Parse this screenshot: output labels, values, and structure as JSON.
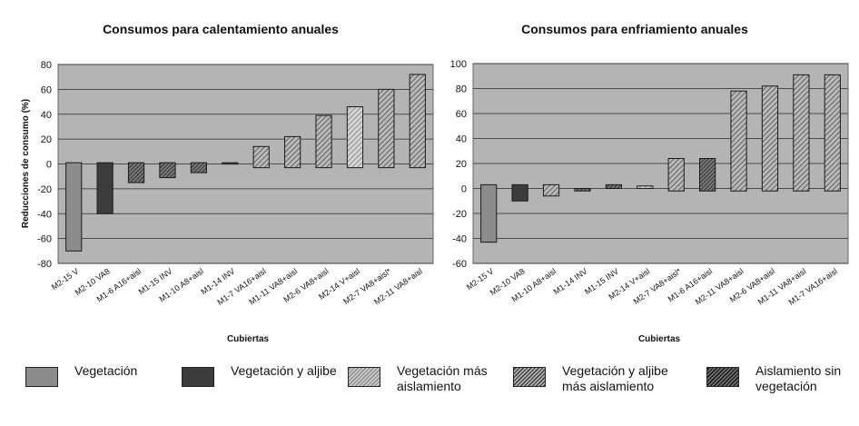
{
  "chart_data": [
    {
      "type": "bar",
      "title": "Consumos para calentamiento anuales",
      "ylabel": "Reducciones de consumo (%)",
      "xlabel": "Cubiertas",
      "ylim": [
        -80,
        80
      ],
      "yticks": [
        -80,
        -60,
        -40,
        -20,
        0,
        20,
        40,
        60,
        80
      ],
      "grid": true,
      "bars": [
        {
          "category": "M2-15 V",
          "low": -70,
          "high": 1,
          "style": "vegetacion"
        },
        {
          "category": "M2-10 VA8",
          "low": -40,
          "high": 1,
          "style": "vegetacion_aljibe"
        },
        {
          "category": "M1-6 A16+aisl",
          "low": -15,
          "high": 1,
          "style": "aislamiento_sin_vegetacion"
        },
        {
          "category": "M1-15 INV",
          "low": -11,
          "high": 1,
          "style": "aislamiento_sin_vegetacion"
        },
        {
          "category": "M1-10 A8+aisl",
          "low": -7,
          "high": 1,
          "style": "aislamiento_sin_vegetacion"
        },
        {
          "category": "M1-14 INV",
          "low": 0,
          "high": 1,
          "style": "aislamiento_sin_vegetacion"
        },
        {
          "category": "M1-7 VA16+aisl",
          "low": -3,
          "high": 14,
          "style": "vegetacion_aljibe_aislamiento"
        },
        {
          "category": "M1-11 VA8+aisl",
          "low": -3,
          "high": 22,
          "style": "vegetacion_aljibe_aislamiento"
        },
        {
          "category": "M2-6 VA8+aisl",
          "low": -3,
          "high": 39,
          "style": "vegetacion_aljibe_aislamiento"
        },
        {
          "category": "M2-14 V+aisl",
          "low": -3,
          "high": 46,
          "style": "vegetacion_aislamiento"
        },
        {
          "category": "M2-7 VA8+aisl*",
          "low": -3,
          "high": 60,
          "style": "vegetacion_aljibe_aislamiento"
        },
        {
          "category": "M2-11 VA8+aisl",
          "low": -3,
          "high": 72,
          "style": "vegetacion_aljibe_aislamiento"
        }
      ]
    },
    {
      "type": "bar",
      "title": "Consumos para enfriamiento anuales",
      "ylabel": "",
      "xlabel": "Cubiertas",
      "ylim": [
        -60,
        100
      ],
      "yticks": [
        -60,
        -40,
        -20,
        0,
        20,
        40,
        60,
        80,
        100
      ],
      "grid": true,
      "bars": [
        {
          "category": "M2-15 V",
          "low": -43,
          "high": 3,
          "style": "vegetacion"
        },
        {
          "category": "M2-10 VA8",
          "low": -10,
          "high": 3,
          "style": "vegetacion_aljibe"
        },
        {
          "category": "M1-10 A8+aisl",
          "low": -6,
          "high": 3,
          "style": "vegetacion_aljibe_aislamiento"
        },
        {
          "category": "M1-14 INV",
          "low": -2,
          "high": 0,
          "style": "aislamiento_sin_vegetacion"
        },
        {
          "category": "M1-15 INV",
          "low": 0,
          "high": 3,
          "style": "aislamiento_sin_vegetacion"
        },
        {
          "category": "M2-14 V+aisl",
          "low": 0,
          "high": 2,
          "style": "vegetacion_aislamiento"
        },
        {
          "category": "M2-7 VA8+aisl*",
          "low": -2,
          "high": 24,
          "style": "vegetacion_aljibe_aislamiento"
        },
        {
          "category": "M1-6 A16+aisl",
          "low": -2,
          "high": 24,
          "style": "aislamiento_sin_vegetacion"
        },
        {
          "category": "M2-11 VA8+aisl",
          "low": -2,
          "high": 78,
          "style": "vegetacion_aljibe_aislamiento"
        },
        {
          "category": "M2-6 VA8+aisl",
          "low": -2,
          "high": 82,
          "style": "vegetacion_aljibe_aislamiento"
        },
        {
          "category": "M1-11 VA8+aisl",
          "low": -2,
          "high": 91,
          "style": "vegetacion_aljibe_aislamiento"
        },
        {
          "category": "M1-7 VA16+aisl",
          "low": -2,
          "high": 91,
          "style": "vegetacion_aljibe_aislamiento"
        }
      ]
    }
  ],
  "legend": [
    {
      "key": "vegetacion",
      "label": "Vegetación"
    },
    {
      "key": "vegetacion_aljibe",
      "label": "Vegetación y aljibe"
    },
    {
      "key": "vegetacion_aislamiento",
      "label": "Vegetación más aislamiento"
    },
    {
      "key": "vegetacion_aljibe_aislamiento",
      "label": "Vegetación y aljibe más aislamiento"
    },
    {
      "key": "aislamiento_sin_vegetacion",
      "label": "Aislamiento sin vegetación"
    }
  ],
  "colors": {
    "plot_background": "#b4b4b4",
    "vegetacion": "#8c8c8c",
    "vegetacion_aljibe": "#3c3c3c",
    "hatch_light": "#b9b9b9",
    "hatch_medium": "#5a5a5a",
    "hatch_dark": "#222222"
  }
}
